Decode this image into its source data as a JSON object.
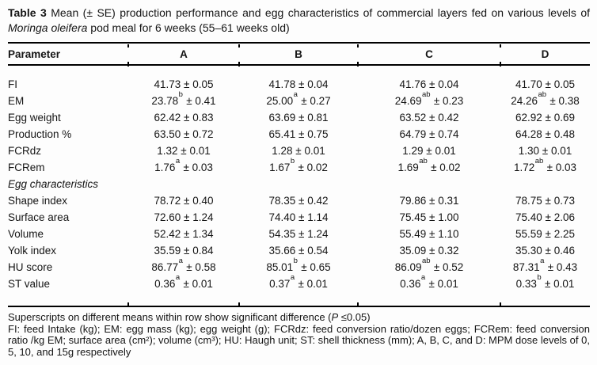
{
  "caption": {
    "label": "Table 3",
    "lead": " Mean (± SE) production performance and egg characteristics of commercial layers fed on various levels of ",
    "species": "Moringa oleifera",
    "tail": " pod meal for 6 weeks (55–61 weeks old)"
  },
  "table": {
    "columns": [
      "Parameter",
      "A",
      "B",
      "C",
      "D"
    ],
    "rows": [
      {
        "type": "data",
        "parameter": "FI",
        "cells": [
          {
            "mean": "41.73",
            "sup": "",
            "se": "0.05"
          },
          {
            "mean": "41.78",
            "sup": "",
            "se": "0.04"
          },
          {
            "mean": "41.76",
            "sup": "",
            "se": "0.04"
          },
          {
            "mean": "41.70",
            "sup": "",
            "se": "0.05"
          }
        ]
      },
      {
        "type": "data",
        "parameter": "EM",
        "cells": [
          {
            "mean": "23.78",
            "sup": "b",
            "se": "0.41"
          },
          {
            "mean": "25.00",
            "sup": "a",
            "se": "0.27"
          },
          {
            "mean": "24.69",
            "sup": "ab",
            "se": "0.23"
          },
          {
            "mean": "24.26",
            "sup": "ab",
            "se": "0.38"
          }
        ]
      },
      {
        "type": "data",
        "parameter": "Egg weight",
        "cells": [
          {
            "mean": "62.42",
            "sup": "",
            "se": "0.83"
          },
          {
            "mean": "63.69",
            "sup": "",
            "se": "0.81"
          },
          {
            "mean": "63.52",
            "sup": "",
            "se": "0.42"
          },
          {
            "mean": "62.92",
            "sup": "",
            "se": "0.69"
          }
        ]
      },
      {
        "type": "data",
        "parameter": "Production %",
        "cells": [
          {
            "mean": "63.50",
            "sup": "",
            "se": "0.72"
          },
          {
            "mean": "65.41",
            "sup": "",
            "se": "0.75"
          },
          {
            "mean": "64.79",
            "sup": "",
            "se": "0.74"
          },
          {
            "mean": "64.28",
            "sup": "",
            "se": "0.48"
          }
        ]
      },
      {
        "type": "data",
        "parameter": "FCRdz",
        "cells": [
          {
            "mean": "1.32",
            "sup": "",
            "se": "0.01"
          },
          {
            "mean": "1.28",
            "sup": "",
            "se": "0.01"
          },
          {
            "mean": "1.29",
            "sup": "",
            "se": "0.01"
          },
          {
            "mean": "1.30",
            "sup": "",
            "se": "0.01"
          }
        ]
      },
      {
        "type": "data",
        "parameter": "FCRem",
        "cells": [
          {
            "mean": "1.76",
            "sup": "a",
            "se": "0.03"
          },
          {
            "mean": "1.67",
            "sup": "b",
            "se": "0.02"
          },
          {
            "mean": "1.69",
            "sup": "ab",
            "se": "0.02"
          },
          {
            "mean": "1.72",
            "sup": "ab",
            "se": "0.03"
          }
        ]
      },
      {
        "type": "section",
        "parameter": "Egg characteristics",
        "cells": []
      },
      {
        "type": "data",
        "parameter": "Shape index",
        "cells": [
          {
            "mean": "78.72",
            "sup": "",
            "se": "0.40"
          },
          {
            "mean": "78.35",
            "sup": "",
            "se": "0.42"
          },
          {
            "mean": "79.86",
            "sup": "",
            "se": "0.31"
          },
          {
            "mean": "78.75",
            "sup": "",
            "se": "0.73"
          }
        ]
      },
      {
        "type": "data",
        "parameter": "Surface area",
        "cells": [
          {
            "mean": "72.60",
            "sup": "",
            "se": "1.24"
          },
          {
            "mean": "74.40",
            "sup": "",
            "se": "1.14"
          },
          {
            "mean": "75.45",
            "sup": "",
            "se": "1.00"
          },
          {
            "mean": "75.40",
            "sup": "",
            "se": "2.06"
          }
        ]
      },
      {
        "type": "data",
        "parameter": "Volume",
        "cells": [
          {
            "mean": "52.42",
            "sup": "",
            "se": "1.34"
          },
          {
            "mean": "54.35",
            "sup": "",
            "se": "1.24"
          },
          {
            "mean": "55.49",
            "sup": "",
            "se": "1.10"
          },
          {
            "mean": "55.59",
            "sup": "",
            "se": "2.25"
          }
        ]
      },
      {
        "type": "data",
        "parameter": "Yolk index",
        "cells": [
          {
            "mean": "35.59",
            "sup": "",
            "se": "0.84"
          },
          {
            "mean": "35.66",
            "sup": "",
            "se": "0.54"
          },
          {
            "mean": "35.09",
            "sup": "",
            "se": "0.32"
          },
          {
            "mean": "35.30",
            "sup": "",
            "se": "0.46"
          }
        ]
      },
      {
        "type": "data",
        "parameter": "HU score",
        "cells": [
          {
            "mean": "86.77",
            "sup": "a",
            "se": "0.58"
          },
          {
            "mean": "85.01",
            "sup": "b",
            "se": "0.65"
          },
          {
            "mean": "86.09",
            "sup": "ab",
            "se": "0.52"
          },
          {
            "mean": "87.31",
            "sup": "a",
            "se": "0.43"
          }
        ]
      },
      {
        "type": "data",
        "parameter": "ST value",
        "cells": [
          {
            "mean": "0.36",
            "sup": "a",
            "se": "0.01"
          },
          {
            "mean": "0.37",
            "sup": "a",
            "se": "0.01"
          },
          {
            "mean": "0.36",
            "sup": "a",
            "se": "0.01"
          },
          {
            "mean": "0.33",
            "sup": "b",
            "se": "0.01"
          }
        ]
      }
    ]
  },
  "footnotes": {
    "significance_pre": "Superscripts on different means within row show significant difference (",
    "significance_p": "P",
    "significance_post": " ≤0.05)",
    "abbreviations": "FI: feed Intake (kg); EM: egg mass (kg); egg weight (g); FCRdz: feed conversion ratio/dozen eggs; FCRem: feed conversion ratio /kg EM; surface area (cm²); volume (cm³); HU: Haugh unit; ST: shell thickness (mm); A, B, C, and D: MPM dose levels of 0, 5, 10, and 15g respectively"
  },
  "colors": {
    "text": "#151515",
    "rule": "#000000",
    "background": "#fdfdfd"
  }
}
